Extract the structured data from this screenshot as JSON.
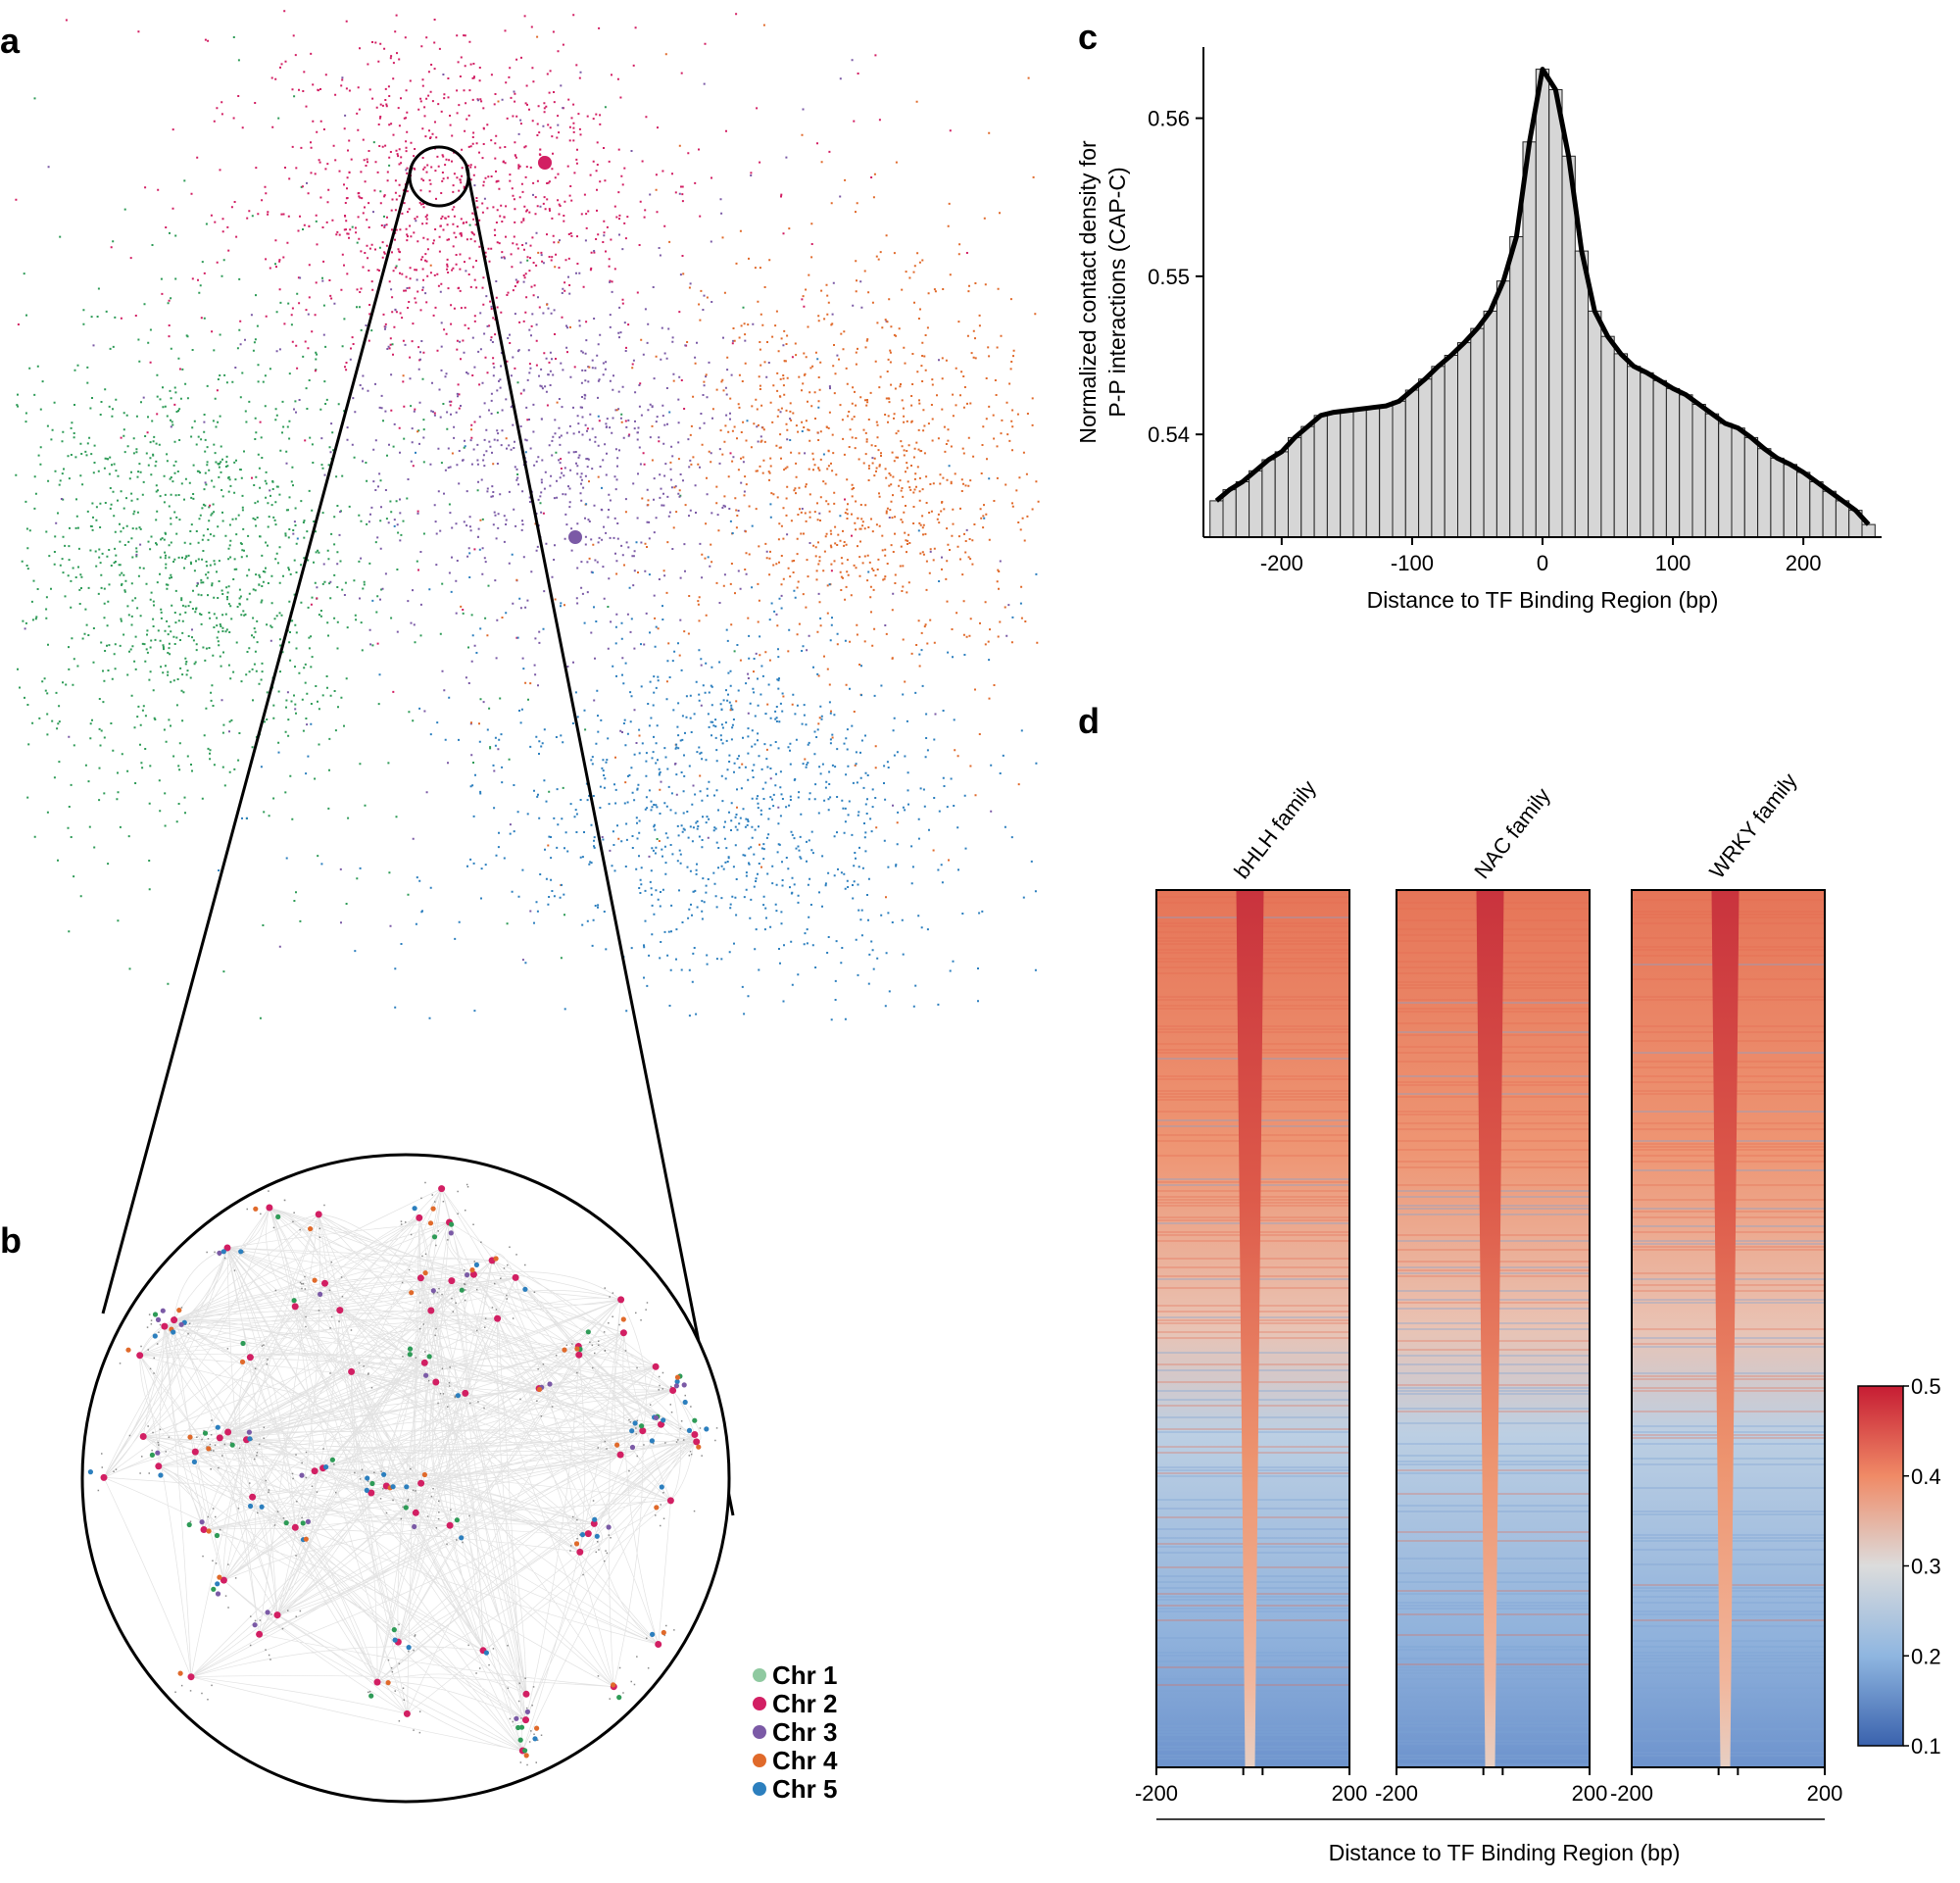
{
  "panels": {
    "a": {
      "label": "a"
    },
    "b": {
      "label": "b"
    },
    "c": {
      "label": "c"
    },
    "d": {
      "label": "d"
    }
  },
  "colors": {
    "chr1": "#2e9b57",
    "chr2": "#d21f63",
    "chr3": "#7b5aa6",
    "chr4": "#e06a2b",
    "chr5": "#2c7fbe",
    "chr1_legend": "#8fc9a0",
    "hist_fill": "#d6d6d6",
    "edge": "#cfcfcf"
  },
  "legend": {
    "items": [
      {
        "label": "Chr 1",
        "color": "#8fc9a0"
      },
      {
        "label": "Chr 2",
        "color": "#d21f63"
      },
      {
        "label": "Chr 3",
        "color": "#7b5aa6"
      },
      {
        "label": "Chr 4",
        "color": "#e06a2b"
      },
      {
        "label": "Chr 5",
        "color": "#2c7fbe"
      }
    ]
  },
  "chart_data": [
    {
      "type": "scatter",
      "panel": "a",
      "title": "",
      "description_series": [
        {
          "name": "Chr 1"
        },
        {
          "name": "Chr 2"
        },
        {
          "name": "Chr 3"
        },
        {
          "name": "Chr 4"
        },
        {
          "name": "Chr 5"
        }
      ]
    },
    {
      "type": "network",
      "panel": "b",
      "series": [
        "Chr 1",
        "Chr 2",
        "Chr 3",
        "Chr 4",
        "Chr 5"
      ]
    },
    {
      "type": "bar",
      "panel": "c",
      "title": "",
      "xlabel": "Distance to TF Binding Region (bp)",
      "ylabel_line1": "Normalized contact density for",
      "ylabel_line2": "P-P interactions (CAP-C)",
      "xlim": [
        -260,
        260
      ],
      "ylim": [
        0.5335,
        0.5645
      ],
      "xticks": [
        -200,
        -100,
        0,
        100,
        200
      ],
      "xtick_labels": [
        "-200",
        "-100",
        "0",
        "100",
        "200"
      ],
      "yticks": [
        0.54,
        0.55,
        0.56
      ],
      "ytick_labels": [
        "0.54",
        "0.55",
        "0.56"
      ],
      "bin_width": 10,
      "x": [
        -250,
        -240,
        -230,
        -220,
        -210,
        -200,
        -190,
        -180,
        -170,
        -160,
        -150,
        -140,
        -130,
        -120,
        -110,
        -100,
        -90,
        -80,
        -70,
        -60,
        -50,
        -40,
        -30,
        -20,
        -10,
        0,
        10,
        20,
        30,
        40,
        50,
        60,
        70,
        80,
        90,
        100,
        110,
        120,
        130,
        140,
        150,
        160,
        170,
        180,
        190,
        200,
        210,
        220,
        230,
        240,
        250
      ],
      "values": [
        0.5358,
        0.5365,
        0.537,
        0.5377,
        0.5384,
        0.5389,
        0.5398,
        0.5405,
        0.5412,
        0.5414,
        0.5415,
        0.5416,
        0.5417,
        0.5418,
        0.5421,
        0.5428,
        0.5435,
        0.5443,
        0.545,
        0.5458,
        0.5467,
        0.5478,
        0.5497,
        0.5525,
        0.5585,
        0.5631,
        0.5618,
        0.5576,
        0.5516,
        0.5478,
        0.5462,
        0.5451,
        0.5443,
        0.5439,
        0.5434,
        0.5429,
        0.5425,
        0.5419,
        0.5413,
        0.5407,
        0.5404,
        0.5398,
        0.5391,
        0.5385,
        0.5381,
        0.5376,
        0.537,
        0.5364,
        0.5358,
        0.5352,
        0.5343
      ],
      "smooth_line": true
    },
    {
      "type": "heatmap",
      "panel": "d",
      "columns": [
        "bHLH family",
        "NAC family",
        "WRKY family"
      ],
      "xtick_labels": [
        "-200",
        "200"
      ],
      "xlabel": "Distance to TF Binding Region (bp)",
      "colorbar": {
        "min": 0.1,
        "max": 0.5,
        "ticks": [
          "0.5",
          "0.4",
          "0.3",
          "0.2",
          "0.1"
        ]
      }
    }
  ]
}
